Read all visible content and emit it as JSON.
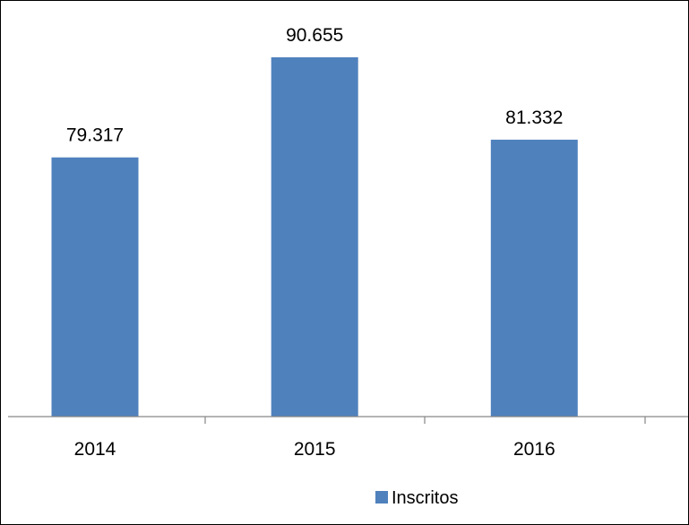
{
  "chart_data": {
    "type": "bar",
    "categories": [
      "2014",
      "2015",
      "2016"
    ],
    "series": [
      {
        "name": "Inscritos",
        "values": [
          79317,
          90655,
          81332
        ],
        "labels": [
          "79.317",
          "90.655",
          "81.332"
        ]
      }
    ],
    "ylim": [
      50000,
      95000
    ],
    "grid": false,
    "legend": "bottom",
    "colors": {
      "bar": "#4f81bd",
      "axis": "#868686",
      "text": "#000000"
    }
  }
}
